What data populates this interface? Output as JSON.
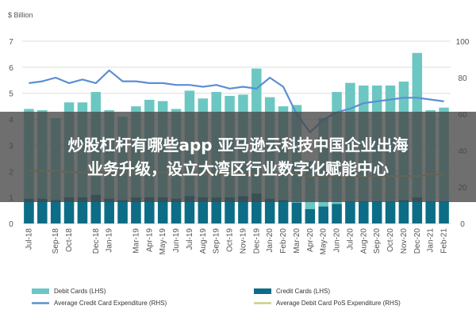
{
  "headline": {
    "line1": "炒股杠杆有哪些app 亚马逊云科技中国企业出海",
    "line2": "业务升级，设立大湾区行业数字化赋能中心"
  },
  "chart_data": {
    "type": "bar",
    "left_unit": "$ Billion",
    "left_ylim": [
      0,
      7
    ],
    "left_ticks": [
      0,
      1,
      2,
      3,
      4,
      5,
      6,
      7
    ],
    "right_ylim": [
      0,
      100
    ],
    "right_ticks": [
      0,
      20,
      40,
      60,
      80,
      100
    ],
    "categories": [
      "Jul-18",
      "Aug-18",
      "Sep-18",
      "Oct-18",
      "Nov-18",
      "Dec-18",
      "Jan-19",
      "Feb-19",
      "Mar-19",
      "Apr-19",
      "May-19",
      "Jun-19",
      "Jul-19",
      "Aug-19",
      "Sep-19",
      "Oct-19",
      "Nov-19",
      "Dec-19",
      "Jan-20",
      "Feb-20",
      "Mar-20",
      "Apr-20",
      "May-20",
      "Jun-20",
      "Jul-20",
      "Aug-20",
      "Sep-20",
      "Oct-20",
      "Nov-20",
      "Dec-20",
      "Jan-21",
      "Feb-21"
    ],
    "x_labels": [
      "Jul-18",
      "Sep-18",
      "Oct-18",
      "Dec-18",
      "Jan-19",
      "Mar-19",
      "Apr-19",
      "May-19",
      "Jun-19",
      "Jul-19",
      "Aug-19",
      "Sep-19",
      "Oct-19",
      "Nov-19",
      "Dec-19",
      "Jan-20",
      "Feb-20",
      "Mar-20",
      "Apr-20",
      "May-20",
      "Jun-20",
      "Jul-20",
      "Aug-20",
      "Sep-20",
      "Oct-20",
      "Nov-20",
      "Dec-20",
      "Jan-21",
      "Feb-21"
    ],
    "series": [
      {
        "name": "Debit Cards (LHS)",
        "axis": "left",
        "kind": "bar",
        "color": "#6cc7c2",
        "values": [
          4.4,
          4.35,
          4.05,
          4.65,
          4.65,
          5.05,
          4.35,
          4.1,
          4.5,
          4.75,
          4.7,
          4.4,
          5.1,
          4.8,
          5.05,
          4.9,
          4.95,
          5.95,
          4.85,
          4.5,
          4.55,
          2.4,
          4.05,
          5.05,
          5.4,
          5.3,
          5.3,
          5.3,
          5.45,
          6.55,
          4.35,
          4.45
        ]
      },
      {
        "name": "Credit Cards (LHS)",
        "axis": "left",
        "kind": "bar",
        "color": "#0e6d86",
        "values": [
          0.95,
          0.95,
          0.9,
          1.0,
          1.0,
          1.1,
          0.95,
          0.9,
          1.0,
          1.0,
          1.0,
          0.95,
          1.05,
          1.0,
          1.0,
          1.0,
          1.05,
          1.15,
          0.95,
          0.9,
          0.8,
          0.55,
          0.65,
          0.75,
          0.85,
          0.85,
          0.85,
          0.85,
          0.9,
          1.0,
          0.85,
          0.85
        ]
      },
      {
        "name": "Average Credit Card Expenditure (RHS)",
        "axis": "right",
        "kind": "line",
        "color": "#5b8fd1",
        "values": [
          77,
          78,
          80,
          77,
          79,
          77,
          84,
          78,
          78,
          77,
          77,
          76,
          76,
          75,
          76,
          74,
          75,
          74,
          80,
          75,
          60,
          50,
          57,
          61,
          63,
          66,
          67,
          68,
          69,
          69,
          68,
          67
        ]
      },
      {
        "name": "Average Debit Card PoS Expenditure (RHS)",
        "axis": "right",
        "kind": "line",
        "color": "#c9d08a",
        "values": [
          29,
          29,
          29,
          28,
          28,
          28,
          28,
          28,
          28,
          28,
          28,
          28,
          27,
          27,
          27,
          27,
          27,
          27,
          27,
          27,
          27,
          26,
          26,
          26,
          26,
          26,
          26,
          26,
          26,
          26,
          27,
          27
        ]
      }
    ],
    "legend_position": "bottom",
    "grid": true
  }
}
